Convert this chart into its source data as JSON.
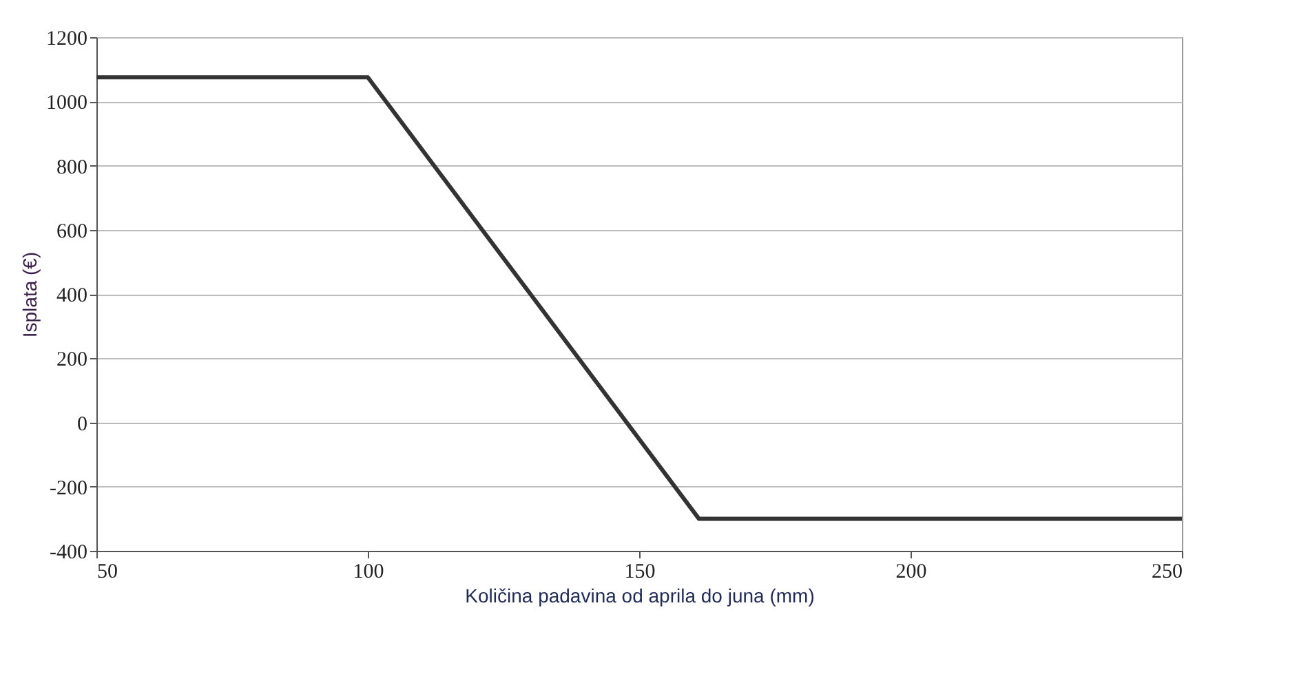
{
  "chart_data": {
    "type": "line",
    "xlabel": "Količina padavina od aprila do juna (mm)",
    "ylabel": "Isplata (€)",
    "x": [
      50,
      100,
      161,
      250
    ],
    "series": [
      {
        "color": "#333333",
        "values": [
          1075,
          1075,
          -300,
          -300
        ]
      }
    ],
    "xlim": [
      50,
      250
    ],
    "xticks": [
      50,
      100,
      150,
      200,
      250
    ],
    "ylim": [
      -400,
      1200
    ],
    "yticks": [
      -400,
      -200,
      0,
      200,
      400,
      600,
      800,
      1000,
      1200
    ],
    "grid": "y",
    "legend": false,
    "marker": "none",
    "line_style": "solid"
  }
}
